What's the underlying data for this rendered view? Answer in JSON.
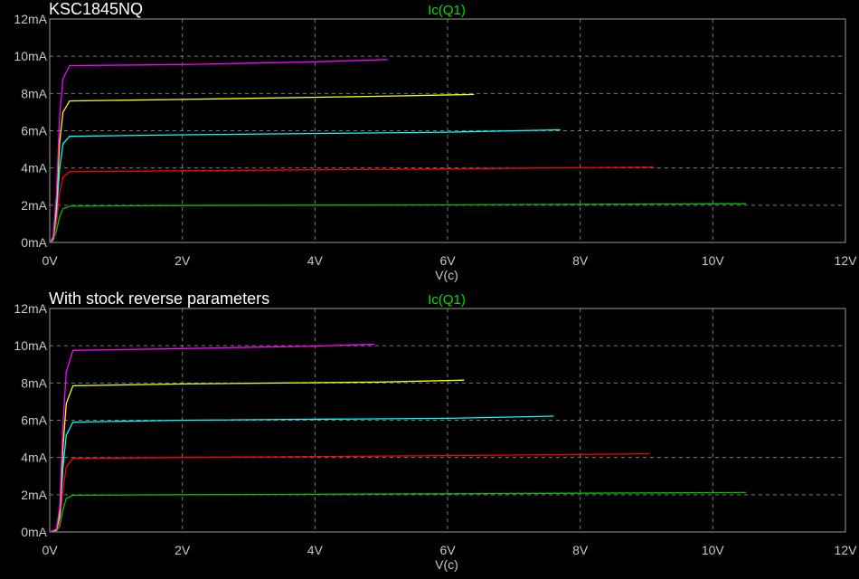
{
  "chart_data": [
    {
      "type": "line",
      "title": "KSC1845NQ",
      "trace_label": "Ic(Q1)",
      "trace_label_color": "#00e000",
      "xlabel": "V(c)",
      "ylabel": "",
      "xlim": [
        0,
        12
      ],
      "ylim": [
        0,
        12
      ],
      "x_ticks": [
        "0V",
        "2V",
        "4V",
        "6V",
        "8V",
        "10V",
        "12V"
      ],
      "y_ticks": [
        "0mA",
        "2mA",
        "4mA",
        "6mA",
        "8mA",
        "10mA",
        "12mA"
      ],
      "grid": true,
      "series": [
        {
          "color": "#00c000",
          "values": [
            [
              0,
              0
            ],
            [
              0.05,
              0.1
            ],
            [
              0.1,
              0.6
            ],
            [
              0.15,
              1.4
            ],
            [
              0.2,
              1.8
            ],
            [
              0.3,
              1.95
            ],
            [
              2,
              1.98
            ],
            [
              6,
              2.02
            ],
            [
              10.5,
              2.08
            ]
          ]
        },
        {
          "color": "#ff0000",
          "values": [
            [
              0,
              0
            ],
            [
              0.05,
              0.15
            ],
            [
              0.1,
              1.0
            ],
            [
              0.15,
              2.7
            ],
            [
              0.2,
              3.5
            ],
            [
              0.3,
              3.8
            ],
            [
              2,
              3.85
            ],
            [
              6,
              3.95
            ],
            [
              9.1,
              4.05
            ]
          ]
        },
        {
          "color": "#00ffff",
          "values": [
            [
              0,
              0
            ],
            [
              0.05,
              0.2
            ],
            [
              0.1,
              1.5
            ],
            [
              0.15,
              4.0
            ],
            [
              0.2,
              5.3
            ],
            [
              0.3,
              5.7
            ],
            [
              2,
              5.78
            ],
            [
              6,
              5.92
            ],
            [
              7.7,
              6.05
            ]
          ]
        },
        {
          "color": "#ffff00",
          "values": [
            [
              0,
              0
            ],
            [
              0.05,
              0.25
            ],
            [
              0.1,
              2.0
            ],
            [
              0.15,
              5.4
            ],
            [
              0.2,
              7.0
            ],
            [
              0.3,
              7.6
            ],
            [
              2,
              7.68
            ],
            [
              5,
              7.85
            ],
            [
              6.4,
              7.95
            ]
          ]
        },
        {
          "color": "#ff00ff",
          "values": [
            [
              0,
              0
            ],
            [
              0.05,
              0.3
            ],
            [
              0.1,
              2.5
            ],
            [
              0.15,
              6.8
            ],
            [
              0.2,
              8.8
            ],
            [
              0.3,
              9.5
            ],
            [
              2,
              9.55
            ],
            [
              4,
              9.7
            ],
            [
              5.1,
              9.82
            ]
          ]
        }
      ]
    },
    {
      "type": "line",
      "title": "With stock reverse parameters",
      "trace_label": "Ic(Q1)",
      "trace_label_color": "#00e000",
      "xlabel": "V(c)",
      "ylabel": "",
      "xlim": [
        0,
        12
      ],
      "ylim": [
        0,
        12
      ],
      "x_ticks": [
        "0V",
        "2V",
        "4V",
        "6V",
        "8V",
        "10V",
        "12V"
      ],
      "y_ticks": [
        "0mA",
        "2mA",
        "4mA",
        "6mA",
        "8mA",
        "10mA",
        "12mA"
      ],
      "grid": true,
      "series": [
        {
          "color": "#00c000",
          "values": [
            [
              0,
              0
            ],
            [
              0.1,
              0.05
            ],
            [
              0.15,
              0.3
            ],
            [
              0.2,
              1.2
            ],
            [
              0.25,
              1.8
            ],
            [
              0.35,
              1.97
            ],
            [
              2,
              2.0
            ],
            [
              6,
              2.05
            ],
            [
              10.5,
              2.12
            ]
          ]
        },
        {
          "color": "#ff0000",
          "values": [
            [
              0,
              0
            ],
            [
              0.1,
              0.08
            ],
            [
              0.15,
              0.5
            ],
            [
              0.2,
              2.3
            ],
            [
              0.25,
              3.5
            ],
            [
              0.35,
              3.95
            ],
            [
              2,
              4.0
            ],
            [
              6,
              4.1
            ],
            [
              9.05,
              4.2
            ]
          ]
        },
        {
          "color": "#00ffff",
          "values": [
            [
              0,
              0
            ],
            [
              0.1,
              0.1
            ],
            [
              0.15,
              0.8
            ],
            [
              0.2,
              3.5
            ],
            [
              0.25,
              5.2
            ],
            [
              0.35,
              5.9
            ],
            [
              2,
              6.0
            ],
            [
              6,
              6.1
            ],
            [
              7.6,
              6.22
            ]
          ]
        },
        {
          "color": "#ffff00",
          "values": [
            [
              0,
              0
            ],
            [
              0.1,
              0.12
            ],
            [
              0.15,
              1.0
            ],
            [
              0.2,
              4.6
            ],
            [
              0.25,
              6.9
            ],
            [
              0.35,
              7.85
            ],
            [
              2,
              7.95
            ],
            [
              5,
              8.05
            ],
            [
              6.25,
              8.15
            ]
          ]
        },
        {
          "color": "#ff00ff",
          "values": [
            [
              0,
              0
            ],
            [
              0.1,
              0.15
            ],
            [
              0.15,
              1.3
            ],
            [
              0.2,
              5.8
            ],
            [
              0.25,
              8.6
            ],
            [
              0.35,
              9.75
            ],
            [
              2,
              9.85
            ],
            [
              4,
              9.98
            ],
            [
              4.9,
              10.08
            ]
          ]
        }
      ]
    }
  ]
}
